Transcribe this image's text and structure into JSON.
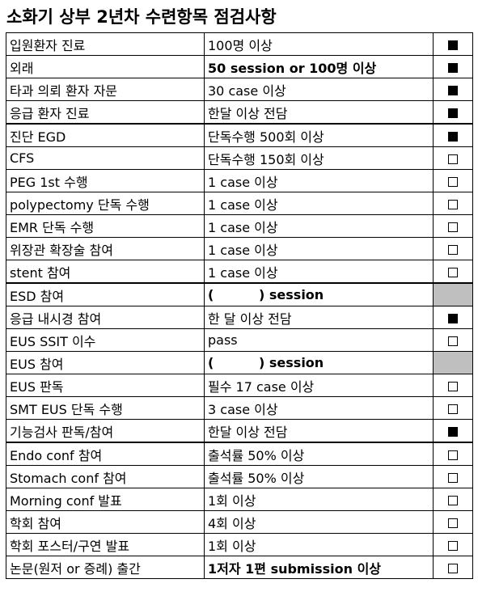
{
  "title": "소화기 상부 2년차 수련항목 점검사항",
  "rows": [
    {
      "item": "입원환자 진료",
      "requirement": "100명 이상",
      "status": "checked"
    },
    {
      "item": "외래",
      "requirement": "50 session or 100명 이상",
      "status": "checked"
    },
    {
      "item": "타과 의뢰 환자 자문",
      "requirement": "30 case 이상",
      "status": "checked"
    },
    {
      "item": "응급 환자 진료",
      "requirement": "한달 이상 전담",
      "status": "checked"
    },
    {
      "item": "진단 EGD",
      "requirement": "단독수행 500회 이상",
      "status": "checked"
    },
    {
      "item": "CFS",
      "requirement": "단독수행 150회 이상",
      "status": "unchecked"
    },
    {
      "item": "PEG 1st 수행",
      "requirement": "1 case 이상",
      "status": "unchecked"
    },
    {
      "item": "polypectomy 단독 수행",
      "requirement": "1 case 이상",
      "status": "unchecked"
    },
    {
      "item": "EMR 단독 수행",
      "requirement": "1 case 이상",
      "status": "unchecked"
    },
    {
      "item": "위장관 확장술 참여",
      "requirement": "1 case 이상",
      "status": "unchecked"
    },
    {
      "item": "stent 참여",
      "requirement": "1 case 이상",
      "status": "unchecked"
    },
    {
      "item": "ESD 참여",
      "requirement": "(          ) session",
      "status": "shaded"
    },
    {
      "item": "응급 내시경 참여",
      "requirement": "한 달 이상 전담",
      "status": "checked"
    },
    {
      "item": "EUS SSIT 이수",
      "requirement": "pass",
      "status": "unchecked"
    },
    {
      "item": "EUS 참여",
      "requirement": "(          ) session",
      "status": "shaded"
    },
    {
      "item": "EUS 판독",
      "requirement": "필수 17 case 이상",
      "status": "unchecked"
    },
    {
      "item": "SMT EUS 단독 수행",
      "requirement": "3 case 이상",
      "status": "unchecked"
    },
    {
      "item": "기능검사 판독/참여",
      "requirement": "한달 이상 전담",
      "status": "checked"
    },
    {
      "item": "Endo conf 참여",
      "requirement": "출석률 50% 이상",
      "status": "unchecked"
    },
    {
      "item": "Stomach conf 참여",
      "requirement": "출석률 50% 이상",
      "status": "unchecked"
    },
    {
      "item": "Morning conf 발표",
      "requirement": "1회 이상",
      "status": "unchecked"
    },
    {
      "item": "학회 참여",
      "requirement": "4회 이상",
      "status": "unchecked"
    },
    {
      "item": "학회 포스터/구연 발표",
      "requirement": "1회 이상",
      "status": "unchecked"
    },
    {
      "item": "논문(원저 or 증례) 출간",
      "requirement": "1저자 1편 submission 이상",
      "status": "unchecked"
    }
  ]
}
